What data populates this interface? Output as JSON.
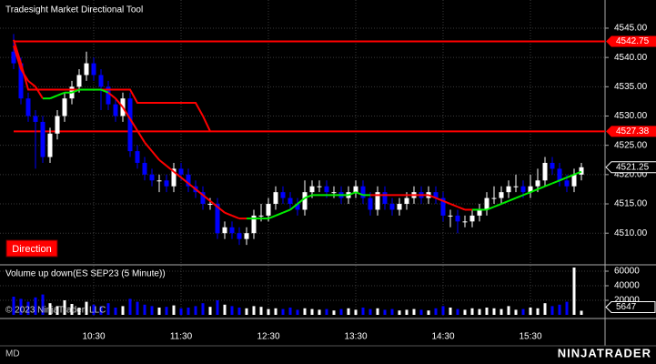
{
  "chart_data": {
    "type": "candlestick",
    "title": "Tradesight Market Directional Tool",
    "button": "Direction",
    "volume_title": "Volume up down(ES SEP23 (5 Minute))",
    "copyright": "© 2023 NinjaTrader, LLC",
    "footer_left": "MD",
    "logo": "NINJATRADER",
    "up_color": "#ffffff",
    "down_color": "#0000ff",
    "grid": true,
    "categories": [
      null,
      null,
      null,
      null,
      null,
      null,
      null,
      null,
      null,
      null,
      null,
      "10:30",
      null,
      null,
      null,
      null,
      null,
      null,
      null,
      null,
      null,
      null,
      null,
      "11:30",
      null,
      null,
      null,
      null,
      null,
      null,
      null,
      null,
      null,
      null,
      null,
      "12:30",
      null,
      null,
      null,
      null,
      null,
      null,
      null,
      null,
      null,
      null,
      null,
      "13:30",
      null,
      null,
      null,
      null,
      null,
      null,
      null,
      null,
      null,
      null,
      null,
      "14:30",
      null,
      null,
      null,
      null,
      null,
      null,
      null,
      null,
      null,
      null,
      null,
      "15:30",
      null,
      null,
      null,
      null,
      null,
      null,
      null
    ],
    "open": [
      4541,
      4539,
      4533,
      4530,
      4529,
      4523,
      4527,
      4530,
      4533,
      4535,
      4537,
      4539,
      4537,
      4535,
      4532,
      4530,
      4533,
      4524,
      4522,
      4520,
      4519,
      4519,
      4518,
      4521,
      4520,
      4518,
      4517,
      4515,
      4515,
      4510,
      4511,
      4510,
      4509,
      4510,
      4513,
      4513,
      4515,
      4517,
      4516,
      4515,
      4514,
      4517,
      4518,
      4518,
      4517,
      4517,
      4516,
      4517,
      4518,
      4516,
      4514,
      4517,
      4515,
      4514,
      4515,
      4516,
      4517,
      4516,
      4517,
      4516,
      4513,
      4513,
      4512,
      4512,
      4513,
      4514,
      4516,
      4516,
      4517,
      4518,
      4518,
      4517,
      4518,
      4519,
      4522,
      4521,
      4519,
      4518,
      4520
    ],
    "high": [
      4544,
      4540,
      4534,
      4531,
      4530,
      4528,
      4531,
      4534,
      4536,
      4538,
      4541,
      4540,
      4538,
      4536,
      4533,
      4534,
      4534,
      4525,
      4523,
      4521,
      4520,
      4520,
      4522,
      4522,
      4521,
      4519,
      4518,
      4516,
      4516,
      4512,
      4512,
      4511,
      4511,
      4514,
      4515,
      4516,
      4518,
      4518,
      4517,
      4516,
      4519,
      4519,
      4519,
      4519,
      4518,
      4518,
      4518,
      4519,
      4519,
      4517,
      4518,
      4518,
      4516,
      4516,
      4517,
      4518,
      4518,
      4518,
      4518,
      4517,
      4514,
      4514,
      4513,
      4514,
      4515,
      4517,
      4518,
      4518,
      4519,
      4520,
      4519,
      4520,
      4521,
      4523,
      4523,
      4522,
      4520,
      4521,
      4522
    ],
    "low": [
      4538,
      4532,
      4529,
      4521,
      4522,
      4522,
      4526,
      4529,
      4532,
      4534,
      4536,
      4536,
      4531,
      4531,
      4529,
      4529,
      4523,
      4521,
      4519,
      4518,
      4517,
      4517,
      4517,
      4519,
      4517,
      4516,
      4514,
      4514,
      4509,
      4509,
      4509,
      4508,
      4508,
      4509,
      4512,
      4512,
      4514,
      4515,
      4514,
      4513,
      4513,
      4516,
      4517,
      4516,
      4516,
      4515,
      4515,
      4516,
      4515,
      4513,
      4513,
      4514,
      4513,
      4513,
      4514,
      4515,
      4515,
      4515,
      4515,
      4512,
      4511,
      4510,
      4511,
      4511,
      4512,
      4513,
      4515,
      4515,
      4516,
      4517,
      4516,
      4516,
      4517,
      4518,
      4520,
      4518,
      4517,
      4517,
      4519
    ],
    "close": [
      4539,
      4533,
      4530,
      4529,
      4523,
      4527,
      4530,
      4533,
      4535,
      4537,
      4539,
      4537,
      4535,
      4532,
      4530,
      4533,
      4524,
      4522,
      4520,
      4519,
      4519,
      4518,
      4521,
      4520,
      4518,
      4517,
      4515,
      4515,
      4510,
      4511,
      4510,
      4509,
      4510,
      4513,
      4513,
      4515,
      4517,
      4516,
      4515,
      4514,
      4517,
      4518,
      4518,
      4517,
      4517,
      4516,
      4517,
      4518,
      4516,
      4514,
      4517,
      4515,
      4514,
      4515,
      4516,
      4517,
      4516,
      4517,
      4516,
      4513,
      4513,
      4512,
      4512,
      4513,
      4514,
      4516,
      4516,
      4517,
      4518,
      4518,
      4517,
      4518,
      4519,
      4522,
      4521,
      4519,
      4518,
      4520,
      4521.25
    ],
    "volume": [
      25000,
      22000,
      18000,
      24000,
      28000,
      16000,
      12000,
      20000,
      15000,
      10000,
      18000,
      14000,
      12000,
      16000,
      10000,
      12000,
      22000,
      18000,
      14000,
      12000,
      10000,
      11000,
      13000,
      9000,
      10000,
      12000,
      16000,
      11000,
      20000,
      14000,
      12000,
      10000,
      9000,
      12000,
      11000,
      8000,
      9000,
      8000,
      10000,
      7000,
      9000,
      8000,
      7000,
      8000,
      6000,
      8000,
      9000,
      7000,
      10000,
      8000,
      9000,
      7000,
      8000,
      6000,
      7000,
      8000,
      7000,
      6000,
      9000,
      12000,
      10000,
      8000,
      7000,
      9000,
      8000,
      10000,
      9000,
      8000,
      12000,
      7000,
      8000,
      10000,
      9000,
      16000,
      12000,
      14000,
      18000,
      65000,
      5647
    ],
    "ma": {
      "values": [
        4542,
        4538,
        4536,
        4535,
        4533,
        4533,
        4533.5,
        4534,
        4534,
        4534.5,
        4534.5,
        4534.5,
        4534.5,
        4534,
        4533,
        4531.5,
        4529.5,
        4527.5,
        4525.5,
        4524,
        4522.5,
        4521.5,
        4520.5,
        4519.5,
        4518.5,
        4517.5,
        4516.5,
        4515.5,
        4514.5,
        4513.5,
        4513,
        4512.5,
        4512.5,
        4512.5,
        4512.5,
        4512.5,
        4513,
        4513.5,
        4514,
        4515,
        4516,
        4516.5,
        4516.5,
        4516.5,
        4516.5,
        4516.5,
        4516.5,
        4517,
        4516.5,
        4516.5,
        4516.5,
        4516.5,
        4516.5,
        4516.5,
        4516.5,
        4516.5,
        4516.5,
        4516.5,
        4516,
        4515.5,
        4515,
        4514.5,
        4514,
        4514,
        4514,
        4514,
        4514.5,
        4515,
        4515.5,
        4516,
        4516.5,
        4517,
        4517.5,
        4518,
        4518.5,
        4519,
        4519.5,
        4520,
        4520.5
      ],
      "colors": [
        "#ff0000",
        "#ff0000",
        "#ff0000",
        "#ff0000",
        "#00ee00",
        "#00ee00",
        "#00ee00",
        "#00ee00",
        "#00ee00",
        "#00ee00",
        "#00ee00",
        "#00ee00",
        "#00ee00",
        "#ff0000",
        "#ff0000",
        "#ff0000",
        "#ff0000",
        "#ff0000",
        "#ff0000",
        "#ff0000",
        "#ff0000",
        "#ff0000",
        "#ff0000",
        "#ff0000",
        "#ff0000",
        "#ff0000",
        "#ff0000",
        "#ff0000",
        "#ff0000",
        "#ff0000",
        "#ff0000",
        "#ff0000",
        "#00ee00",
        "#00ee00",
        "#00ee00",
        "#00ee00",
        "#00ee00",
        "#00ee00",
        "#00ee00",
        "#00ee00",
        "#00ee00",
        "#00ee00",
        "#00ee00",
        "#00ee00",
        "#00ee00",
        "#00ee00",
        "#00ee00",
        "#00ee00",
        "#00ee00",
        "#ff0000",
        "#ff0000",
        "#ff0000",
        "#ff0000",
        "#ff0000",
        "#ff0000",
        "#ff0000",
        "#ff0000",
        "#ff0000",
        "#ff0000",
        "#ff0000",
        "#ff0000",
        "#ff0000",
        "#ff0000",
        "#00ee00",
        "#00ee00",
        "#00ee00",
        "#00ee00",
        "#00ee00",
        "#00ee00",
        "#00ee00",
        "#00ee00",
        "#00ee00",
        "#00ee00",
        "#00ee00",
        "#00ee00",
        "#00ee00",
        "#00ee00",
        "#00ee00",
        "#00ee00"
      ]
    },
    "stop": {
      "color": "#ff0000",
      "values": [
        4543,
        4539,
        4534.5,
        4534.5,
        4534.5,
        4534.5,
        4534.5,
        4534.5,
        4534.5,
        4534.5,
        4534.5,
        4534.5,
        4534.5,
        4534.5,
        4534.5,
        4534.5,
        4534.5,
        4532.25,
        4532.25,
        4532.25,
        4532.25,
        4532.25,
        4532.25,
        4532.25,
        4532.25,
        4532.25,
        4530,
        4527.38
      ]
    },
    "levels": [
      4542.75,
      4527.38
    ],
    "level_color": "#ff0000",
    "ylim": [
      4504.75,
      4549.5
    ],
    "yticks": [
      {
        "value": 4510,
        "label": "4510.00"
      },
      {
        "value": 4515,
        "label": "4515.00"
      },
      {
        "value": 4520,
        "label": "4520.00"
      },
      {
        "value": 4525,
        "label": "4525.00"
      },
      {
        "value": 4530,
        "label": "4530.00"
      },
      {
        "value": 4535,
        "label": "4535.00"
      },
      {
        "value": 4540,
        "label": "4540.00"
      },
      {
        "value": 4545,
        "label": "4545.00"
      }
    ],
    "vlim": [
      0,
      67500
    ],
    "vticks": [
      20000,
      40000,
      60000
    ]
  }
}
